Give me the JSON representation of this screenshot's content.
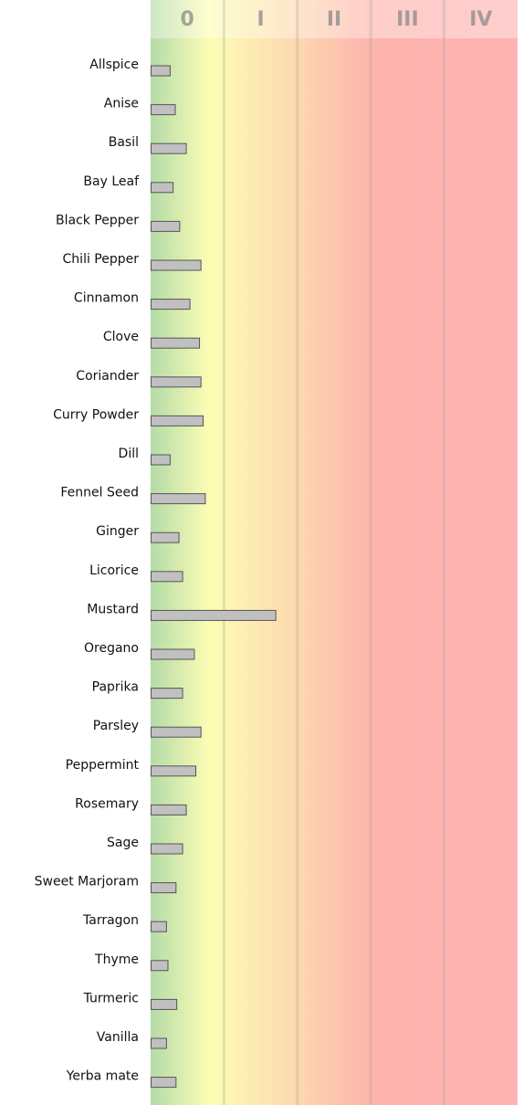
{
  "chart_data": {
    "type": "bar",
    "orientation": "horizontal",
    "categories": [
      "Allspice",
      "Anise",
      "Basil",
      "Bay Leaf",
      "Black Pepper",
      "Chili Pepper",
      "Cinnamon",
      "Clove",
      "Coriander",
      "Curry Powder",
      "Dill",
      "Fennel Seed",
      "Ginger",
      "Licorice",
      "Mustard",
      "Oregano",
      "Paprika",
      "Parsley",
      "Peppermint",
      "Rosemary",
      "Sage",
      "Sweet Marjoram",
      "Tarragon",
      "Thyme",
      "Turmeric",
      "Vanilla",
      "Yerba mate"
    ],
    "values": [
      0.26,
      0.33,
      0.48,
      0.3,
      0.39,
      0.68,
      0.53,
      0.66,
      0.68,
      0.71,
      0.26,
      0.74,
      0.38,
      0.43,
      1.7,
      0.59,
      0.43,
      0.68,
      0.61,
      0.48,
      0.43,
      0.34,
      0.21,
      0.23,
      0.35,
      0.21,
      0.34
    ],
    "color": "#c0c0c0",
    "xlim": [
      0,
      5
    ],
    "xticks": [
      {
        "value": 0.5,
        "label": "0"
      },
      {
        "value": 1.5,
        "label": "I"
      },
      {
        "value": 2.5,
        "label": "II"
      },
      {
        "value": 3.5,
        "label": "III"
      },
      {
        "value": 4.5,
        "label": "IV"
      }
    ]
  }
}
